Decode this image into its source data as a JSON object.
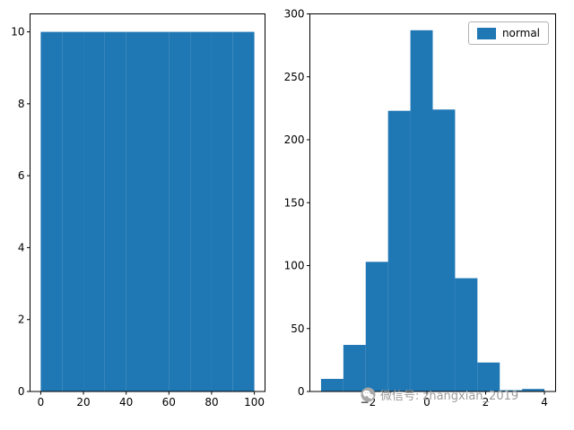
{
  "figure": {
    "background": "#ffffff",
    "watermark": {
      "icon": "wechat-icon",
      "text": "微信号: zhangxian_2019",
      "color": "#9b9b9b"
    }
  },
  "chart_data": [
    {
      "name": "uniform-histogram",
      "type": "bar",
      "title": "",
      "xlabel": "",
      "ylabel": "",
      "color": "#1f77b4",
      "grid": false,
      "xlim": [
        -5,
        105
      ],
      "ylim": [
        0,
        10.5
      ],
      "xticks": {
        "values": [
          0,
          20,
          40,
          60,
          80,
          100
        ],
        "labels": [
          "0",
          "20",
          "40",
          "60",
          "80",
          "100"
        ]
      },
      "yticks": {
        "values": [
          0,
          2,
          4,
          6,
          8,
          10
        ],
        "labels": [
          "0",
          "2",
          "4",
          "6",
          "8",
          "10"
        ]
      },
      "bin_edges": [
        0,
        10,
        20,
        30,
        40,
        50,
        60,
        70,
        80,
        90,
        100
      ],
      "values": [
        10,
        10,
        10,
        10,
        10,
        10,
        10,
        10,
        10,
        10
      ],
      "legend": []
    },
    {
      "name": "normal-histogram",
      "type": "bar",
      "title": "",
      "xlabel": "",
      "ylabel": "",
      "color": "#1f77b4",
      "grid": false,
      "xlim": [
        -3.98,
        4.38
      ],
      "ylim": [
        0,
        300
      ],
      "xticks": {
        "values": [
          -2,
          0,
          2,
          4
        ],
        "labels": [
          "−2",
          "0",
          "2",
          "4"
        ]
      },
      "yticks": {
        "values": [
          0,
          50,
          100,
          150,
          200,
          250,
          300
        ],
        "labels": [
          "0",
          "50",
          "100",
          "150",
          "200",
          "250",
          "300"
        ]
      },
      "bin_edges": [
        -3.6,
        -2.84,
        -2.08,
        -1.32,
        -0.56,
        0.2,
        0.96,
        1.72,
        2.48,
        3.24,
        4.0
      ],
      "values": [
        10,
        37,
        103,
        223,
        287,
        224,
        90,
        23,
        1,
        2
      ],
      "legend": [
        "normal"
      ],
      "legend_position": "upper right"
    }
  ]
}
